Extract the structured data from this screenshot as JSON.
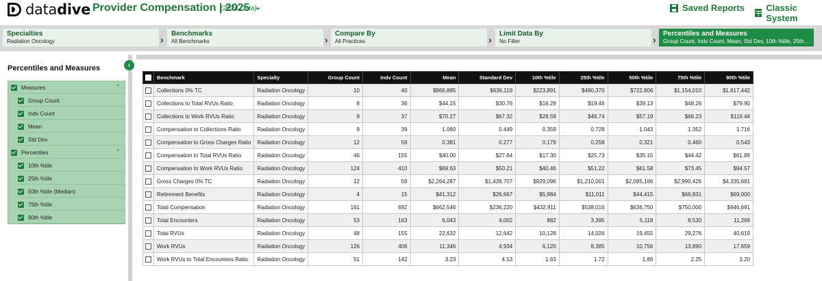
{
  "brand": {
    "logo_prefix": "data",
    "logo_suffix": "dive"
  },
  "header": {
    "title": "Provider Compensation | 2025",
    "subtitle": "(2024 Data)",
    "saved_reports": "Saved Reports",
    "classic_system": "Classic System"
  },
  "steps": [
    {
      "title": "Specialties",
      "value": "Radiation Oncology"
    },
    {
      "title": "Benchmarks",
      "value": "All Benchmarks"
    },
    {
      "title": "Compare By",
      "value": "All Practices"
    },
    {
      "title": "Limit Data By",
      "value": "No Filter"
    },
    {
      "title": "Percentiles and Measures",
      "value": "Group Count, Indv Count, Mean, Std Dev, 10th %tile, 25th %til..."
    }
  ],
  "panel": {
    "title": "Percentiles and Measures",
    "measures_label": "Measures",
    "measures": [
      "Group Count",
      "Indv Count",
      "Mean",
      "Std Dev"
    ],
    "percentiles_label": "Percentiles",
    "percentiles": [
      "10th %tile",
      "25th %tile",
      "50th %tile (Median)",
      "75th %tile",
      "90th %tile"
    ]
  },
  "table": {
    "headers": [
      "Benchmark",
      "Specialty",
      "Group Count",
      "Indv Count",
      "Mean",
      "Standard Dev",
      "10th %tile",
      "25th %tile",
      "50th %tile",
      "75th %tile",
      "90th %tile"
    ],
    "rows": [
      [
        "Collections 0% TC",
        "Radiation Oncology",
        "10",
        "40",
        "$866,885",
        "$636,119",
        "$223,891",
        "$490,370",
        "$722,806",
        "$1,154,010",
        "$1,617,442"
      ],
      [
        "Collections to Total RVUs Ratio",
        "Radiation Oncology",
        "8",
        "36",
        "$44.15",
        "$30.76",
        "$16.29",
        "$19.46",
        "$39.13",
        "$48.26",
        "$79.90"
      ],
      [
        "Collections to Work RVUs Ratio",
        "Radiation Oncology",
        "9",
        "37",
        "$70.27",
        "$67.32",
        "$28.59",
        "$46.74",
        "$57.19",
        "$66.23",
        "$119.44"
      ],
      [
        "Compensation to Collections Ratio",
        "Radiation Oncology",
        "9",
        "39",
        "1.060",
        "0.449",
        "0.359",
        "0.728",
        "1.043",
        "1.352",
        "1.716"
      ],
      [
        "Compensation to Gross Charges Ratio",
        "Radiation Oncology",
        "12",
        "59",
        "0.381",
        "0.277",
        "0.179",
        "0.258",
        "0.321",
        "0.460",
        "0.543"
      ],
      [
        "Compensation to Total RVUs Ratio",
        "Radiation Oncology",
        "46",
        "155",
        "$40.00",
        "$27.64",
        "$17.30",
        "$25.73",
        "$35.15",
        "$44.42",
        "$61.89"
      ],
      [
        "Compensation to Work RVUs Ratio",
        "Radiation Oncology",
        "124",
        "410",
        "$69.63",
        "$50.21",
        "$40.46",
        "$51.22",
        "$61.58",
        "$73.45",
        "$94.57"
      ],
      [
        "Gross Charges 0% TC",
        "Radiation Oncology",
        "12",
        "59",
        "$2,264,287",
        "$1,439,707",
        "$929,096",
        "$1,210,001",
        "$2,085,166",
        "$2,990,426",
        "$4,335,681"
      ],
      [
        "Retirement Benefits",
        "Radiation Oncology",
        "4",
        "15",
        "$41,312",
        "$26,667",
        "$5,984",
        "$11,011",
        "$44,415",
        "$66,831",
        "$69,000"
      ],
      [
        "Total Compensation",
        "Radiation Oncology",
        "161",
        "692",
        "$662,546",
        "$236,220",
        "$432,911",
        "$538,016",
        "$636,750",
        "$750,000",
        "$946,691"
      ],
      [
        "Total Encounters",
        "Radiation Oncology",
        "53",
        "163",
        "6,043",
        "4,002",
        "882",
        "3,395",
        "5,118",
        "8,530",
        "11,269"
      ],
      [
        "Total RVUs",
        "Radiation Oncology",
        "48",
        "155",
        "22,632",
        "12,642",
        "10,128",
        "14,026",
        "19,455",
        "29,276",
        "40,619"
      ],
      [
        "Work RVUs",
        "Radiation Oncology",
        "126",
        "406",
        "11,346",
        "4,934",
        "6,120",
        "8,385",
        "10,756",
        "13,890",
        "17,659"
      ],
      [
        "Work RVUs to Total Encounters Ratio",
        "Radiation Oncology",
        "51",
        "142",
        "3.23",
        "4.53",
        "1.63",
        "1.72",
        "1.86",
        "2.25",
        "3.20"
      ]
    ]
  },
  "colors": {
    "brand_green": "#1f8c45",
    "tree_bg": "#a9d4b3"
  }
}
